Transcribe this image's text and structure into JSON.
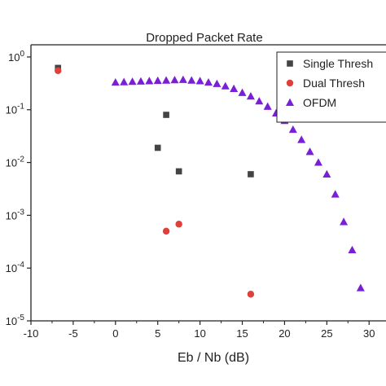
{
  "chart_data": {
    "type": "scatter",
    "title": "Dropped Packet Rate",
    "xlabel": "Eb / Nb (dB)",
    "ylabel": "",
    "xlim": [
      -10,
      32
    ],
    "ylim": [
      1e-05,
      1.7
    ],
    "yscale": "log",
    "x_ticks": [
      -10,
      -5,
      0,
      5,
      10,
      15,
      20,
      25,
      30
    ],
    "y_ticks": [
      {
        "base": "10",
        "exp": "0",
        "value": 1
      },
      {
        "base": "10",
        "exp": "-1",
        "value": 0.1
      },
      {
        "base": "10",
        "exp": "-2",
        "value": 0.01
      },
      {
        "base": "10",
        "exp": "-3",
        "value": 0.001
      },
      {
        "base": "10",
        "exp": "-4",
        "value": 0.0001
      },
      {
        "base": "10",
        "exp": "-5",
        "value": 1e-05
      }
    ],
    "grid": false,
    "legend_position": "top-right",
    "series": [
      {
        "name": "Single Thresh",
        "marker": "square",
        "color": "#444444",
        "points": [
          {
            "x": -6.8,
            "y": 0.62
          },
          {
            "x": 5.0,
            "y": 0.019
          },
          {
            "x": 6.0,
            "y": 0.08
          },
          {
            "x": 7.5,
            "y": 0.0068
          },
          {
            "x": 16.0,
            "y": 0.006
          }
        ]
      },
      {
        "name": "Dual Thresh",
        "marker": "circle",
        "color": "#e0403a",
        "points": [
          {
            "x": -6.8,
            "y": 0.55
          },
          {
            "x": 6.0,
            "y": 0.0005
          },
          {
            "x": 7.5,
            "y": 0.00068
          },
          {
            "x": 16.0,
            "y": 3.2e-05
          }
        ]
      },
      {
        "name": "OFDM",
        "marker": "triangle",
        "color": "#7a1fd6",
        "points": [
          {
            "x": 0,
            "y": 0.33
          },
          {
            "x": 1,
            "y": 0.335
          },
          {
            "x": 2,
            "y": 0.34
          },
          {
            "x": 3,
            "y": 0.345
          },
          {
            "x": 4,
            "y": 0.35
          },
          {
            "x": 5,
            "y": 0.355
          },
          {
            "x": 6,
            "y": 0.36
          },
          {
            "x": 7,
            "y": 0.365
          },
          {
            "x": 8,
            "y": 0.37
          },
          {
            "x": 9,
            "y": 0.36
          },
          {
            "x": 10,
            "y": 0.35
          },
          {
            "x": 11,
            "y": 0.33
          },
          {
            "x": 12,
            "y": 0.31
          },
          {
            "x": 13,
            "y": 0.28
          },
          {
            "x": 14,
            "y": 0.25
          },
          {
            "x": 15,
            "y": 0.21
          },
          {
            "x": 16,
            "y": 0.18
          },
          {
            "x": 17,
            "y": 0.145
          },
          {
            "x": 18,
            "y": 0.115
          },
          {
            "x": 19,
            "y": 0.086
          },
          {
            "x": 20,
            "y": 0.062
          },
          {
            "x": 21,
            "y": 0.042
          },
          {
            "x": 22,
            "y": 0.027
          },
          {
            "x": 23,
            "y": 0.016
          },
          {
            "x": 24,
            "y": 0.01
          },
          {
            "x": 25,
            "y": 0.006
          },
          {
            "x": 26,
            "y": 0.0025
          },
          {
            "x": 27,
            "y": 0.00075
          },
          {
            "x": 28,
            "y": 0.00022
          },
          {
            "x": 29,
            "y": 4.2e-05
          }
        ]
      }
    ]
  }
}
